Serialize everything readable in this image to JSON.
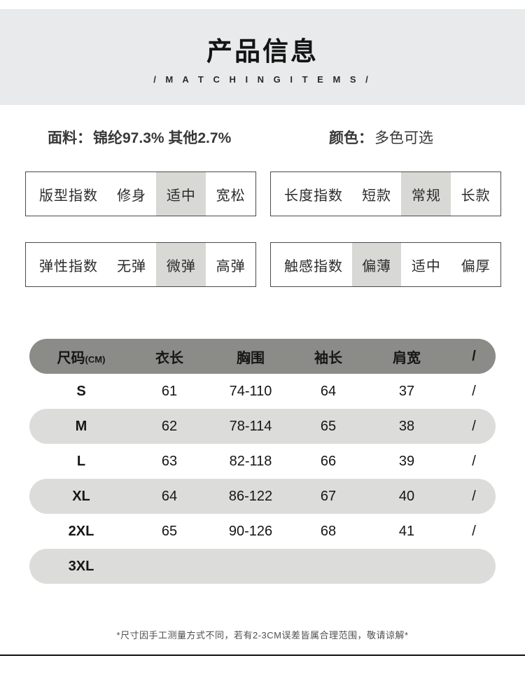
{
  "header": {
    "title": "产品信息",
    "subtitle": "/ M A T C H I N G   I T E M S /"
  },
  "specs": {
    "fabric_label": "面料：",
    "fabric_value": "锦纶97.3% 其他2.7%",
    "color_label": "颜色：",
    "color_value": "多色可选"
  },
  "indices": [
    {
      "label": "版型指数",
      "options": [
        "修身",
        "适中",
        "宽松"
      ],
      "selected": 1
    },
    {
      "label": "长度指数",
      "options": [
        "短款",
        "常规",
        "长款"
      ],
      "selected": 1
    },
    {
      "label": "弹性指数",
      "options": [
        "无弹",
        "微弹",
        "高弹"
      ],
      "selected": 1
    },
    {
      "label": "触感指数",
      "options": [
        "偏薄",
        "适中",
        "偏厚"
      ],
      "selected": 0
    }
  ],
  "size_table": {
    "headers": [
      "尺码",
      "衣长",
      "胸围",
      "袖长",
      "肩宽",
      "/"
    ],
    "header_unit": "(CM)",
    "rows": [
      [
        "S",
        "61",
        "74-110",
        "64",
        "37",
        "/"
      ],
      [
        "M",
        "62",
        "78-114",
        "65",
        "38",
        "/"
      ],
      [
        "L",
        "63",
        "82-118",
        "66",
        "39",
        "/"
      ],
      [
        "XL",
        "64",
        "86-122",
        "67",
        "40",
        "/"
      ],
      [
        "2XL",
        "65",
        "90-126",
        "68",
        "41",
        "/"
      ],
      [
        "3XL",
        "",
        "",
        "",
        "",
        ""
      ]
    ]
  },
  "note": "*尺寸因手工测量方式不同，若有2-3CM误差皆属合理范围，敬请谅解*",
  "colors": {
    "band_bg": "#e9eaeb",
    "header_pill": "#8b8b87",
    "row_pill": "#dcdcda",
    "option_highlight": "#d8d8d4",
    "divider": "#101010"
  }
}
